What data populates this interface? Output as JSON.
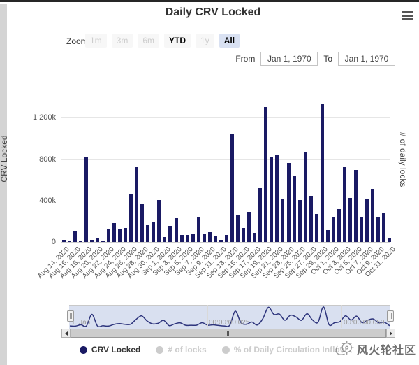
{
  "header": {
    "title": "Daily CRV Locked"
  },
  "range_selector": {
    "zoom_label": "Zoom",
    "buttons": [
      {
        "label": "1m",
        "state": "disabled"
      },
      {
        "label": "3m",
        "state": "disabled"
      },
      {
        "label": "6m",
        "state": "disabled"
      },
      {
        "label": "YTD",
        "state": "enabled"
      },
      {
        "label": "1y",
        "state": "disabled"
      },
      {
        "label": "All",
        "state": "selected"
      }
    ],
    "from_label": "From",
    "from_value": "Jan 1, 1970",
    "to_label": "To",
    "to_value": "Jan 1, 1970"
  },
  "chart_data": {
    "type": "bar",
    "title": "Daily CRV Locked",
    "xlabel": "",
    "ylabel_left": "CRV Locked",
    "ylabel_right": "# of daily locks",
    "ylim": [
      0,
      1400000
    ],
    "yticks_left": [
      "0",
      "400k",
      "800k",
      "1 200k"
    ],
    "grid": true,
    "legend_position": "bottom",
    "x_tick_labels": [
      "Aug 14, 2020",
      "Aug 16, 2020",
      "Aug 18, 2020",
      "Aug 20, 2020",
      "Aug 22, 2020",
      "Aug 24, 2020",
      "Aug 26, 2020",
      "Aug 28, 2020",
      "Aug 30, 2020",
      "Sep 1, 2020",
      "Sep 3, 2020",
      "Sep 5, 2020",
      "Sep 7, 2020",
      "Sep 9, 2020",
      "Sep 11, 2020",
      "Sep 13, 2020",
      "Sep 15, 2020",
      "Sep 17, 2020",
      "Sep 19, 2020",
      "Sep 21, 2020",
      "Sep 23, 2020",
      "Sep 25, 2020",
      "Sep 27, 2020",
      "Sep 29, 2020",
      "Oct 1, 2020",
      "Oct 3, 2020",
      "Oct 5, 2020",
      "Oct 7, 2020",
      "Oct 9, 2020",
      "Oct 11, 2020"
    ],
    "categories": [
      "Aug 14, 2020",
      "Aug 15, 2020",
      "Aug 16, 2020",
      "Aug 17, 2020",
      "Aug 18, 2020",
      "Aug 19, 2020",
      "Aug 20, 2020",
      "Aug 21, 2020",
      "Aug 22, 2020",
      "Aug 23, 2020",
      "Aug 24, 2020",
      "Aug 25, 2020",
      "Aug 26, 2020",
      "Aug 27, 2020",
      "Aug 28, 2020",
      "Aug 29, 2020",
      "Aug 30, 2020",
      "Aug 31, 2020",
      "Sep 1, 2020",
      "Sep 2, 2020",
      "Sep 3, 2020",
      "Sep 4, 2020",
      "Sep 5, 2020",
      "Sep 6, 2020",
      "Sep 7, 2020",
      "Sep 8, 2020",
      "Sep 9, 2020",
      "Sep 10, 2020",
      "Sep 11, 2020",
      "Sep 12, 2020",
      "Sep 13, 2020",
      "Sep 14, 2020",
      "Sep 15, 2020",
      "Sep 16, 2020",
      "Sep 17, 2020",
      "Sep 18, 2020",
      "Sep 19, 2020",
      "Sep 20, 2020",
      "Sep 21, 2020",
      "Sep 22, 2020",
      "Sep 23, 2020",
      "Sep 24, 2020",
      "Sep 25, 2020",
      "Sep 26, 2020",
      "Sep 27, 2020",
      "Sep 28, 2020",
      "Sep 29, 2020",
      "Sep 30, 2020",
      "Oct 1, 2020",
      "Oct 2, 2020",
      "Oct 3, 2020",
      "Oct 4, 2020",
      "Oct 5, 2020",
      "Oct 6, 2020",
      "Oct 7, 2020",
      "Oct 8, 2020",
      "Oct 9, 2020",
      "Oct 10, 2020",
      "Oct 11, 2020"
    ],
    "series": [
      {
        "name": "CRV Locked",
        "visible": true,
        "color": "#1a1a64",
        "values": [
          18000,
          4000,
          100000,
          15000,
          820000,
          20000,
          32000,
          10000,
          125000,
          180000,
          130000,
          136000,
          466000,
          719000,
          364000,
          164000,
          198000,
          407000,
          45000,
          157000,
          231000,
          67000,
          67000,
          74000,
          243000,
          74000,
          97000,
          52000,
          18000,
          67000,
          1040000,
          264000,
          134000,
          291000,
          85000,
          519000,
          1303000,
          823000,
          836000,
          411000,
          764000,
          641000,
          407000,
          865000,
          436000,
          268000,
          1330000,
          112000,
          239000,
          320000,
          720000,
          425000,
          693000,
          246000,
          413000,
          503000,
          239000,
          279000,
          34000
        ]
      },
      {
        "name": "# of locks",
        "visible": false,
        "color": "#cccccc",
        "values": []
      },
      {
        "name": "% of Daily Circulation Inflow",
        "visible": false,
        "color": "#cccccc",
        "values": []
      }
    ]
  },
  "navigator": {
    "labels": [
      "1. Jan",
      "00:00:00.025",
      "00:00:00.050"
    ]
  },
  "legend": {
    "items": [
      {
        "label": "CRV Locked",
        "enabled": true,
        "color": "#1a1a64"
      },
      {
        "label": "# of locks",
        "enabled": false,
        "color": "#cccccc"
      },
      {
        "label": "% of Daily Circulation Inflow",
        "enabled": false,
        "color": "#cccccc"
      }
    ]
  },
  "watermark": {
    "text": "风火轮社区"
  },
  "colors": {
    "series_navy": "#1a1a64",
    "navigator_mask": "rgba(102,133,194,0.25)",
    "gridline": "#e6e6e6",
    "disabled_text": "#cccccc",
    "selected_button_bg": "#d9e1f2"
  }
}
